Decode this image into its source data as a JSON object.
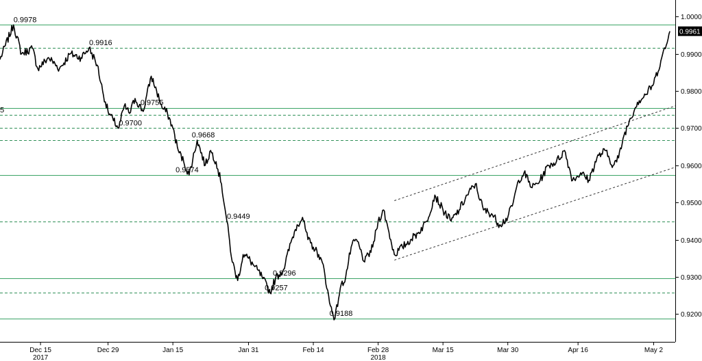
{
  "chart_data": {
    "type": "line",
    "title": "",
    "xlabel": "",
    "ylabel": "",
    "ylim": [
      0.9125,
      1.0045
    ],
    "y_axis_side": "right",
    "grid": false,
    "colors": {
      "price": "#000000",
      "level": "#3aa365",
      "channel": "#333333"
    },
    "x_ticks": [
      {
        "label": "Dec 15",
        "year": "2017"
      },
      {
        "label": "Dec 29",
        "year": ""
      },
      {
        "label": "Jan 15",
        "year": ""
      },
      {
        "label": "Jan 31",
        "year": ""
      },
      {
        "label": "Feb 14",
        "year": ""
      },
      {
        "label": "Feb 28",
        "year": "2018"
      },
      {
        "label": "Mar 15",
        "year": ""
      },
      {
        "label": "Mar 30",
        "year": ""
      },
      {
        "label": "Apr 16",
        "year": ""
      },
      {
        "label": "May 2",
        "year": ""
      }
    ],
    "y_ticks": [
      "0.9200",
      "0.9300",
      "0.9400",
      "0.9500",
      "0.9600",
      "0.9700",
      "0.9800",
      "0.9900",
      "1.0000"
    ],
    "last_value": "0.9961",
    "levels": [
      {
        "value": 0.9978,
        "style": "solid"
      },
      {
        "value": 0.9916,
        "style": "dashed"
      },
      {
        "value": 0.9755,
        "style": "solid"
      },
      {
        "value": 0.9735,
        "style": "dashed"
      },
      {
        "value": 0.97,
        "style": "dashed"
      },
      {
        "value": 0.9668,
        "style": "dashed"
      },
      {
        "value": 0.9574,
        "style": "solid"
      },
      {
        "value": 0.9449,
        "style": "dashed"
      },
      {
        "value": 0.9296,
        "style": "solid"
      },
      {
        "value": 0.9257,
        "style": "dashed"
      },
      {
        "value": 0.9188,
        "style": "solid"
      }
    ],
    "annotations": [
      {
        "text": "0.9978",
        "x": 5,
        "y": 0.9978
      },
      {
        "text": "0.9916",
        "x": 33,
        "y": 0.9916
      },
      {
        "text": "0.9755",
        "x": 52,
        "y": 0.9755
      },
      {
        "text": "0.9700",
        "x": 44,
        "y": 0.97
      },
      {
        "text": "0.9668",
        "x": 71,
        "y": 0.9668
      },
      {
        "text": "0.9574",
        "x": 65,
        "y": 0.9574
      },
      {
        "text": "0.9449",
        "x": 84,
        "y": 0.9449
      },
      {
        "text": "0.9296",
        "x": 101,
        "y": 0.9296
      },
      {
        "text": "0.9257",
        "x": 98,
        "y": 0.9257
      },
      {
        "text": "0.9188",
        "x": 122,
        "y": 0.9188
      },
      {
        "text": "5",
        "x": 0,
        "y": 0.9735
      }
    ],
    "channel": {
      "upper": [
        {
          "x": 146,
          "y": 0.9505
        },
        {
          "x": 250,
          "y": 0.976
        }
      ],
      "lower": [
        {
          "x": 146,
          "y": 0.9345
        },
        {
          "x": 250,
          "y": 0.9595
        }
      ]
    },
    "price": {
      "x_start": 0,
      "x_end": 248,
      "x": [
        0,
        5,
        8,
        12,
        14,
        18,
        22,
        26,
        30,
        33,
        36,
        38,
        40,
        42,
        44,
        46,
        48,
        50,
        53,
        56,
        58,
        60,
        62,
        64,
        66,
        68,
        70,
        73,
        76,
        78,
        80,
        82,
        84,
        86,
        88,
        90,
        92,
        94,
        97,
        100,
        102,
        105,
        108,
        110,
        112,
        114,
        116,
        118,
        120,
        122,
        124,
        126,
        128,
        130,
        132,
        135,
        138,
        140,
        142,
        144,
        146,
        149,
        152,
        155,
        158,
        161,
        164,
        167,
        170,
        173,
        176,
        179,
        182,
        185,
        188,
        190,
        192,
        194,
        197,
        200,
        203,
        206,
        209,
        212,
        215,
        218,
        221,
        224,
        227,
        229,
        231,
        233,
        236,
        239,
        242,
        245,
        247,
        248
      ],
      "y": [
        0.9885,
        0.9978,
        0.99,
        0.9915,
        0.986,
        0.989,
        0.986,
        0.99,
        0.989,
        0.9916,
        0.987,
        0.98,
        0.9745,
        0.972,
        0.97,
        0.976,
        0.974,
        0.978,
        0.9745,
        0.984,
        0.98,
        0.9755,
        0.974,
        0.97,
        0.964,
        0.961,
        0.9574,
        0.9668,
        0.96,
        0.964,
        0.961,
        0.955,
        0.9449,
        0.934,
        0.929,
        0.936,
        0.935,
        0.933,
        0.93,
        0.9257,
        0.9296,
        0.932,
        0.94,
        0.944,
        0.946,
        0.94,
        0.938,
        0.936,
        0.932,
        0.923,
        0.9188,
        0.927,
        0.93,
        0.938,
        0.94,
        0.934,
        0.938,
        0.945,
        0.948,
        0.942,
        0.936,
        0.938,
        0.94,
        0.942,
        0.945,
        0.952,
        0.948,
        0.945,
        0.948,
        0.952,
        0.955,
        0.948,
        0.947,
        0.944,
        0.946,
        0.95,
        0.956,
        0.958,
        0.954,
        0.956,
        0.96,
        0.961,
        0.964,
        0.956,
        0.958,
        0.956,
        0.962,
        0.964,
        0.96,
        0.962,
        0.968,
        0.972,
        0.977,
        0.979,
        0.982,
        0.989,
        0.993,
        0.9961
      ]
    }
  }
}
